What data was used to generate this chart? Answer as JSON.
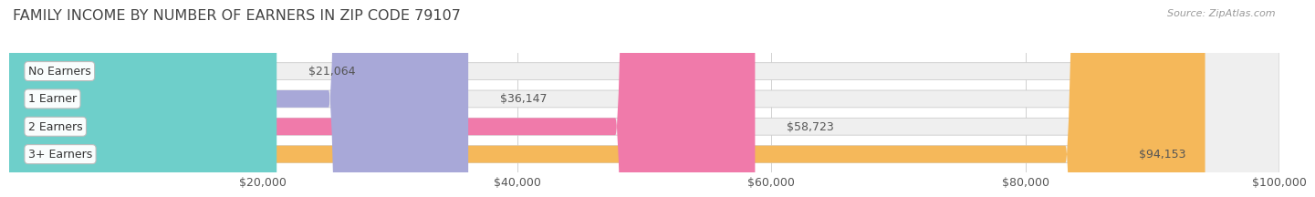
{
  "title": "FAMILY INCOME BY NUMBER OF EARNERS IN ZIP CODE 79107",
  "source": "Source: ZipAtlas.com",
  "categories": [
    "No Earners",
    "1 Earner",
    "2 Earners",
    "3+ Earners"
  ],
  "values": [
    21064,
    36147,
    58723,
    94153
  ],
  "labels": [
    "$21,064",
    "$36,147",
    "$58,723",
    "$94,153"
  ],
  "bar_colors": [
    "#6ecfca",
    "#a8a8d8",
    "#f07aaa",
    "#f5b85a"
  ],
  "bar_bg_color": "#efefef",
  "background_color": "#ffffff",
  "xlim": [
    0,
    100000
  ],
  "xticks": [
    0,
    20000,
    40000,
    60000,
    80000,
    100000
  ],
  "xtick_labels": [
    "",
    "$20,000",
    "$40,000",
    "$60,000",
    "$80,000",
    "$100,000"
  ],
  "title_fontsize": 11.5,
  "label_fontsize": 9,
  "bar_height": 0.62,
  "grid_color": "#d0d0d0",
  "text_color": "#555555",
  "title_color": "#444444",
  "source_color": "#999999",
  "value_inside_threshold": 80000
}
